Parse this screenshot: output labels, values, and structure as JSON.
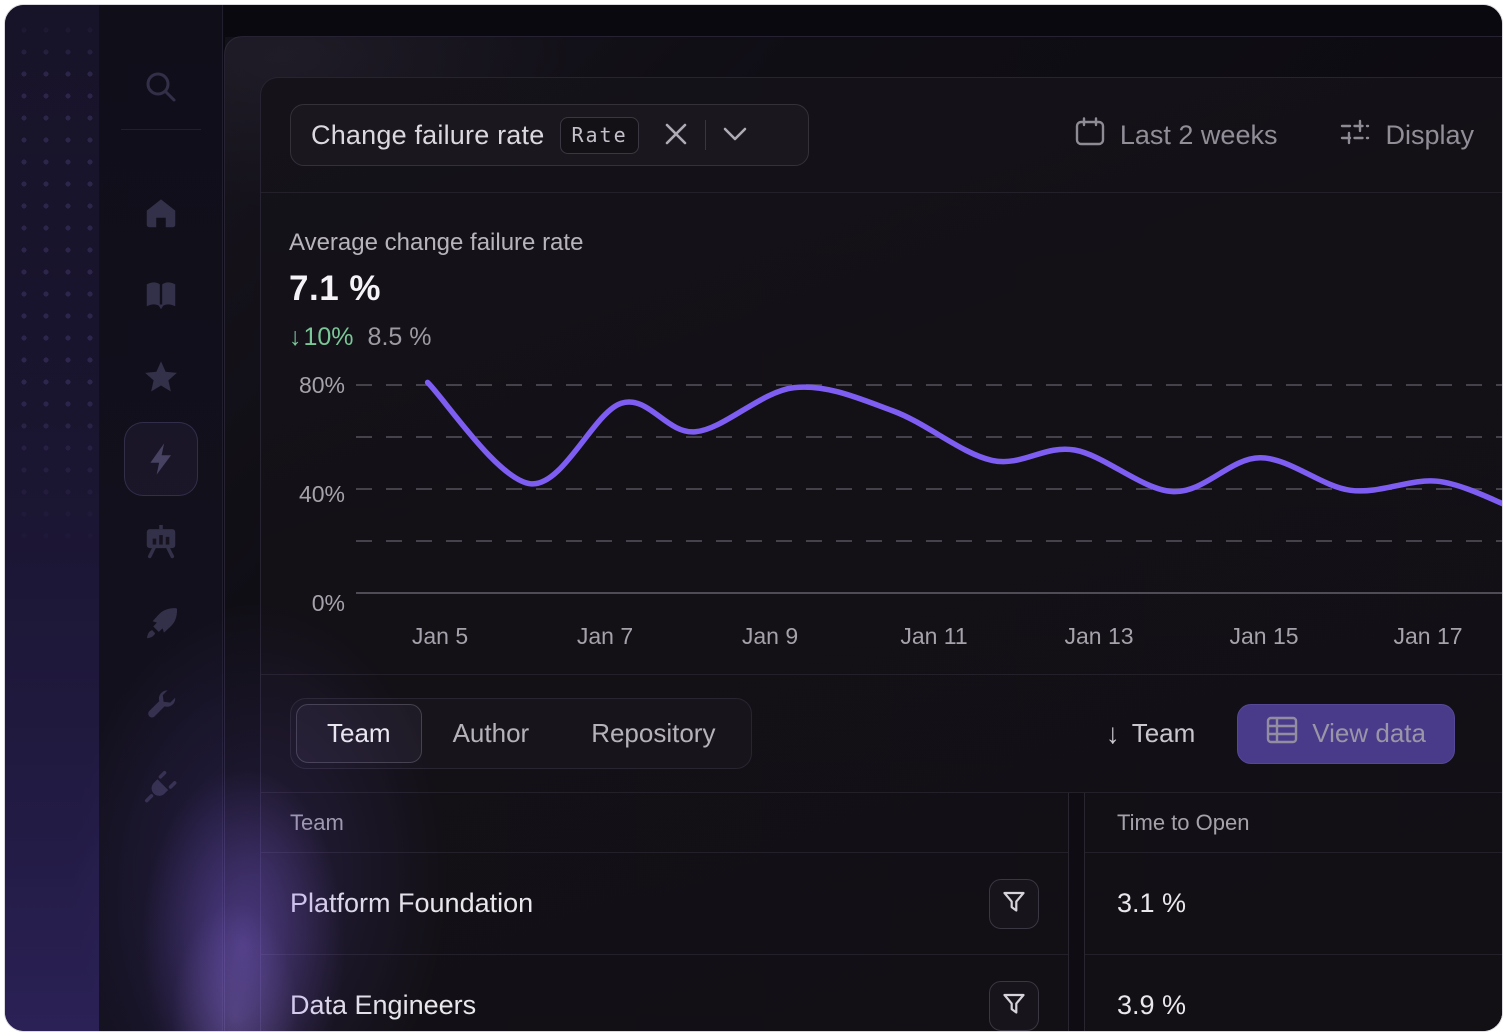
{
  "colors": {
    "accent_line": "#7e5ef2",
    "positive_green": "#79c697",
    "view_data_bg": "#4a3b8a"
  },
  "icons": {
    "delta_arrow": "↓",
    "sort_arrow": "↓"
  },
  "sidebar": {
    "items": [
      {
        "name": "search"
      },
      {
        "name": "home"
      },
      {
        "name": "docs"
      },
      {
        "name": "favorites"
      },
      {
        "name": "metrics",
        "active": true
      },
      {
        "name": "reports"
      },
      {
        "name": "deployments"
      },
      {
        "name": "tools"
      },
      {
        "name": "integrations"
      }
    ]
  },
  "filter_bar": {
    "metric_select": {
      "value": "Change failure rate",
      "tag": "Rate"
    },
    "date_range": "Last 2 weeks",
    "display": "Display"
  },
  "summary": {
    "label": "Average change failure rate",
    "value": "7.1 %",
    "delta": "10%",
    "delta_direction": "down",
    "secondary_value": "8.5 %"
  },
  "chart_data": {
    "type": "line",
    "title": "Average change failure rate",
    "unit": "%",
    "ylim": [
      0,
      100
    ],
    "grid": "dashed horizontal at 20/40/60/80",
    "legend": "none",
    "line_color": "#7e5ef2",
    "x_ticks": [
      "Jan 5",
      "Jan 7",
      "Jan 9",
      "Jan 11",
      "Jan 13",
      "Jan 15",
      "Jan 17"
    ],
    "y_ticks": [
      "80%",
      "40%",
      "0%"
    ],
    "series": [
      {
        "name": "Change failure rate",
        "points": [
          {
            "day": 4.85,
            "value": 81
          },
          {
            "day": 6.1,
            "value": 42
          },
          {
            "day": 7.2,
            "value": 73
          },
          {
            "day": 8.1,
            "value": 62
          },
          {
            "day": 9.3,
            "value": 79
          },
          {
            "day": 10.5,
            "value": 70
          },
          {
            "day": 11.7,
            "value": 51
          },
          {
            "day": 12.7,
            "value": 55
          },
          {
            "day": 13.9,
            "value": 39
          },
          {
            "day": 14.95,
            "value": 52
          },
          {
            "day": 16.05,
            "value": 39.5
          },
          {
            "day": 17.1,
            "value": 43
          },
          {
            "day": 18.0,
            "value": 33
          }
        ]
      }
    ]
  },
  "breakdown": {
    "tabs": [
      {
        "label": "Team",
        "selected": true
      },
      {
        "label": "Author",
        "selected": false
      },
      {
        "label": "Repository",
        "selected": false
      }
    ],
    "sort": {
      "label": "Team",
      "direction": "down"
    },
    "view_data_label": "View data",
    "table": {
      "columns": [
        "Team",
        "Time to Open"
      ],
      "rows": [
        {
          "team": "Platform Foundation",
          "time_to_open": "3.1 %"
        },
        {
          "team": "Data Engineers",
          "time_to_open": "3.9 %"
        }
      ]
    }
  }
}
